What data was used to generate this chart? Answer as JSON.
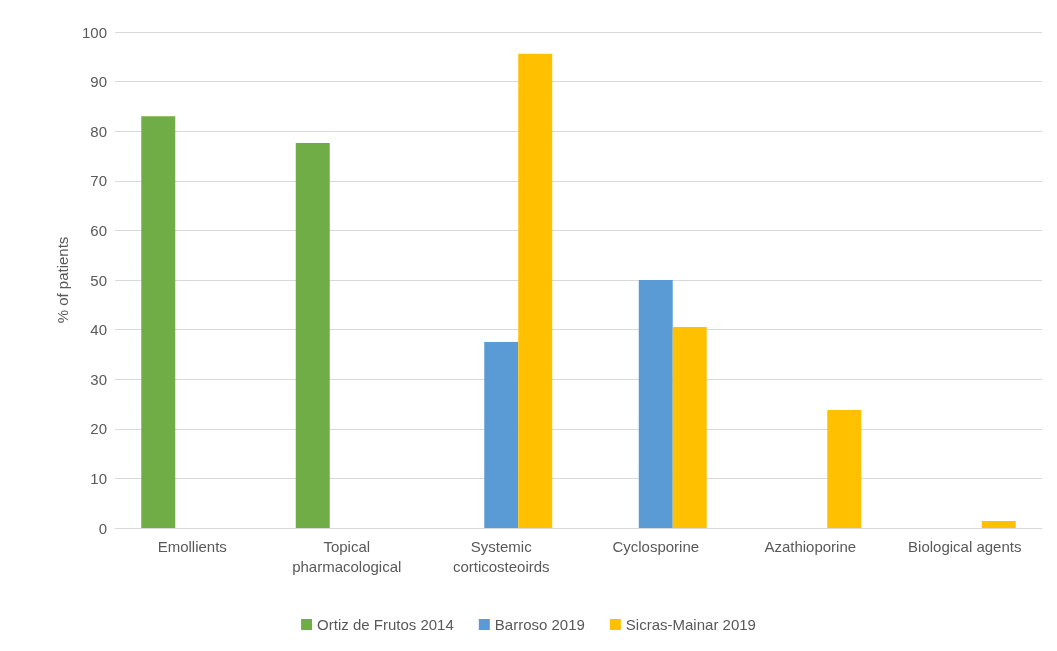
{
  "chart_data": {
    "type": "bar",
    "ylabel": "% of patients",
    "categories": [
      "Emollients",
      "Topical\npharmacological",
      "Systemic\ncorticosteoirds",
      "Cyclosporine",
      "Azathioporine",
      "Biological agents"
    ],
    "series": [
      {
        "name": "Ortiz de Frutos 2014",
        "color": "#70ad47",
        "values": [
          83,
          77.6,
          null,
          null,
          null,
          null
        ]
      },
      {
        "name": "Barroso 2019",
        "color": "#5b9bd5",
        "values": [
          null,
          null,
          37.5,
          50,
          null,
          null
        ]
      },
      {
        "name": "Sicras-Mainar 2019",
        "color": "#ffc000",
        "values": [
          null,
          null,
          95.6,
          40.5,
          23.8,
          1.4
        ]
      }
    ],
    "ylim": [
      0,
      100
    ],
    "yticks": [
      0,
      10,
      20,
      30,
      40,
      50,
      60,
      70,
      80,
      90,
      100
    ],
    "grid": "y",
    "legend": "bottom"
  }
}
